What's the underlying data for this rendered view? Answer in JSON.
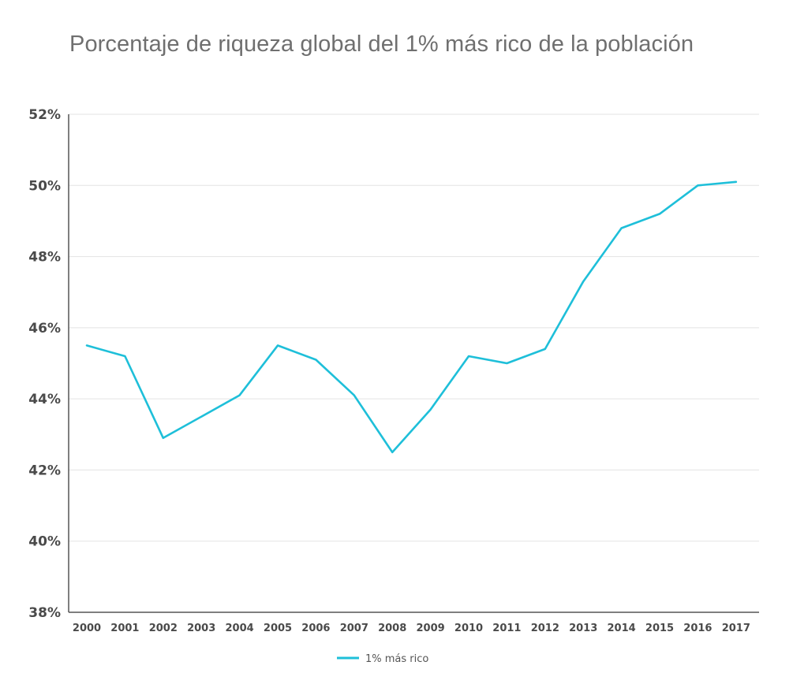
{
  "chart_data": {
    "type": "line",
    "title": "Porcentaje de riqueza global del 1% más rico de la población",
    "categories": [
      "2000",
      "2001",
      "2002",
      "2003",
      "2004",
      "2005",
      "2006",
      "2007",
      "2008",
      "2009",
      "2010",
      "2011",
      "2012",
      "2013",
      "2014",
      "2015",
      "2016",
      "2017"
    ],
    "series": [
      {
        "name": "1% más rico",
        "color": "#1ebfd9",
        "values": [
          45.5,
          45.2,
          42.9,
          43.5,
          44.1,
          45.5,
          45.1,
          44.1,
          42.5,
          43.7,
          45.2,
          45.0,
          45.4,
          47.3,
          48.8,
          49.2,
          50.0,
          50.1
        ]
      }
    ],
    "ylim": [
      38,
      52
    ],
    "yticks": [
      38,
      40,
      42,
      44,
      46,
      48,
      50,
      52
    ],
    "ytick_labels": [
      "38%",
      "40%",
      "42%",
      "44%",
      "46%",
      "48%",
      "50%",
      "52%"
    ],
    "grid": true,
    "legend_position": "bottom-center",
    "xlabel": "",
    "ylabel": ""
  }
}
